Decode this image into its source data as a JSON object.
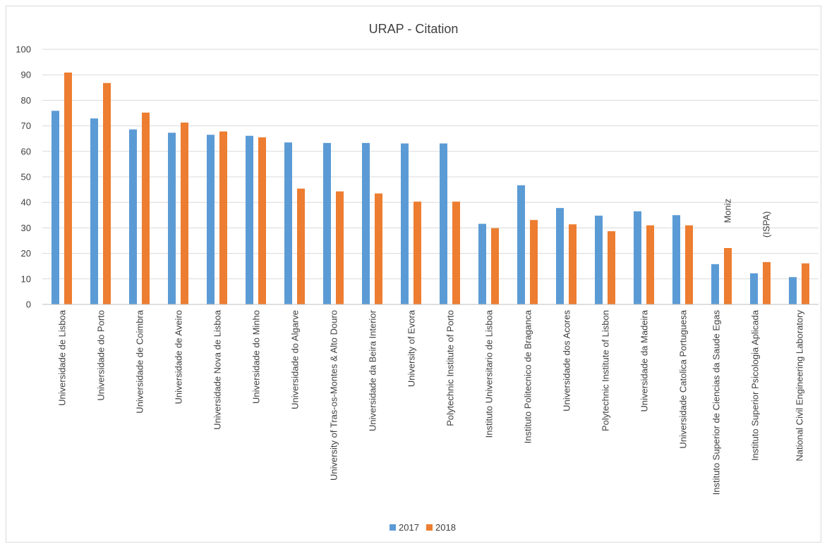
{
  "chart_data": {
    "type": "bar",
    "title": "URAP - Citation",
    "xlabel": "",
    "ylabel": "",
    "ylim": [
      0,
      100
    ],
    "yticks": [
      0,
      10,
      20,
      30,
      40,
      50,
      60,
      70,
      80,
      90,
      100
    ],
    "grid": true,
    "legend_position": "bottom",
    "categories": [
      "Universidade de Lisboa",
      "Universidade do Porto",
      "Universidade de Coimbra",
      "Universidade de Aveiro",
      "Universidade Nova de Lisboa",
      "Universidade do Minho",
      "Universidade do Algarve",
      "University of Tras-os-Montes & Alto Douro",
      "Universidade da Beira Interior",
      "University of Evora",
      "Polytechnic Institute of Porto",
      "Instituto Universitario de Lisboa",
      "Instituto Politecnico de Braganca",
      "Universidade dos Acores",
      "Polytechnic Institute of Lisbon",
      "Universidade da Madeira",
      "Universidade Catolica Portuguesa",
      "Instituto Superior de Ciencias da Saude Egas Moniz",
      "Instituto Superior Psicologia Aplicada (ISPA)",
      "National Civil Engineering Laboratory"
    ],
    "series": [
      {
        "name": "2017",
        "color": "#5b9bd5",
        "values": [
          75.9,
          72.9,
          68.6,
          67.3,
          66.5,
          66.1,
          63.5,
          63.3,
          63.3,
          63.1,
          63.1,
          31.6,
          46.7,
          37.8,
          34.8,
          36.5,
          35.0,
          15.8,
          12.2,
          10.7
        ]
      },
      {
        "name": "2018",
        "color": "#ed7d31",
        "values": [
          90.9,
          86.8,
          75.2,
          71.3,
          67.8,
          65.5,
          45.4,
          44.3,
          43.5,
          40.3,
          40.3,
          29.9,
          33.1,
          31.4,
          28.7,
          31.0,
          31.0,
          22.1,
          16.6,
          16.1
        ]
      }
    ]
  }
}
